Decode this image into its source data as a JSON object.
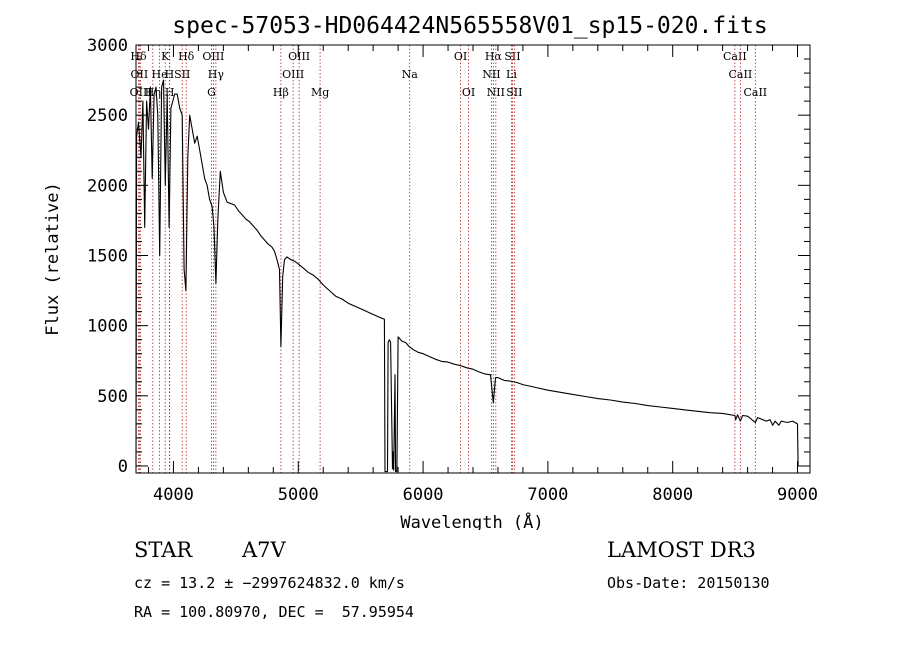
{
  "chart_data": {
    "type": "line",
    "title": "spec-57053-HD064424N565558V01_sp15-020.fits",
    "xlabel": "Wavelength (Å)",
    "ylabel": "Flux (relative)",
    "xlim": [
      3700,
      9100
    ],
    "ylim": [
      -50,
      3000
    ],
    "xticks": [
      4000,
      5000,
      6000,
      7000,
      8000,
      9000
    ],
    "yticks": [
      0,
      500,
      1000,
      1500,
      2000,
      2500,
      3000
    ],
    "series": [
      {
        "name": "spectrum",
        "points": [
          [
            3700,
            0
          ],
          [
            3705,
            2350
          ],
          [
            3720,
            2450
          ],
          [
            3740,
            2200
          ],
          [
            3755,
            2600
          ],
          [
            3770,
            1700
          ],
          [
            3785,
            2600
          ],
          [
            3800,
            2400
          ],
          [
            3815,
            2700
          ],
          [
            3830,
            2050
          ],
          [
            3845,
            2650
          ],
          [
            3860,
            2700
          ],
          [
            3875,
            2500
          ],
          [
            3890,
            1500
          ],
          [
            3905,
            2700
          ],
          [
            3920,
            2750
          ],
          [
            3935,
            2000
          ],
          [
            3950,
            2650
          ],
          [
            3965,
            1700
          ],
          [
            3980,
            2550
          ],
          [
            3995,
            2600
          ],
          [
            4010,
            2650
          ],
          [
            4030,
            2650
          ],
          [
            4050,
            2550
          ],
          [
            4070,
            2500
          ],
          [
            4085,
            1400
          ],
          [
            4100,
            1250
          ],
          [
            4115,
            2200
          ],
          [
            4130,
            2500
          ],
          [
            4150,
            2400
          ],
          [
            4170,
            2300
          ],
          [
            4190,
            2350
          ],
          [
            4210,
            2250
          ],
          [
            4230,
            2150
          ],
          [
            4250,
            2050
          ],
          [
            4270,
            2000
          ],
          [
            4290,
            1900
          ],
          [
            4310,
            1850
          ],
          [
            4325,
            1700
          ],
          [
            4340,
            1300
          ],
          [
            4355,
            1750
          ],
          [
            4375,
            2100
          ],
          [
            4400,
            1950
          ],
          [
            4430,
            1880
          ],
          [
            4460,
            1870
          ],
          [
            4490,
            1860
          ],
          [
            4520,
            1820
          ],
          [
            4550,
            1790
          ],
          [
            4580,
            1760
          ],
          [
            4610,
            1740
          ],
          [
            4640,
            1710
          ],
          [
            4670,
            1680
          ],
          [
            4700,
            1640
          ],
          [
            4730,
            1610
          ],
          [
            4760,
            1580
          ],
          [
            4790,
            1560
          ],
          [
            4810,
            1530
          ],
          [
            4830,
            1470
          ],
          [
            4850,
            1400
          ],
          [
            4861,
            850
          ],
          [
            4875,
            1350
          ],
          [
            4890,
            1470
          ],
          [
            4910,
            1490
          ],
          [
            4940,
            1470
          ],
          [
            4970,
            1460
          ],
          [
            5000,
            1440
          ],
          [
            5040,
            1410
          ],
          [
            5080,
            1380
          ],
          [
            5120,
            1360
          ],
          [
            5160,
            1330
          ],
          [
            5200,
            1290
          ],
          [
            5250,
            1250
          ],
          [
            5300,
            1210
          ],
          [
            5350,
            1190
          ],
          [
            5400,
            1160
          ],
          [
            5450,
            1140
          ],
          [
            5500,
            1120
          ],
          [
            5550,
            1100
          ],
          [
            5600,
            1080
          ],
          [
            5650,
            1060
          ],
          [
            5690,
            1045
          ],
          [
            5695,
            -40
          ],
          [
            5715,
            -40
          ],
          [
            5720,
            880
          ],
          [
            5730,
            900
          ],
          [
            5740,
            880
          ],
          [
            5755,
            -20
          ],
          [
            5760,
            100
          ],
          [
            5765,
            -30
          ],
          [
            5775,
            650
          ],
          [
            5780,
            -40
          ],
          [
            5790,
            -40
          ],
          [
            5800,
            920
          ],
          [
            5830,
            890
          ],
          [
            5860,
            880
          ],
          [
            5890,
            850
          ],
          [
            5920,
            830
          ],
          [
            5960,
            810
          ],
          [
            6000,
            800
          ],
          [
            6050,
            780
          ],
          [
            6100,
            760
          ],
          [
            6150,
            745
          ],
          [
            6200,
            740
          ],
          [
            6250,
            725
          ],
          [
            6300,
            715
          ],
          [
            6350,
            700
          ],
          [
            6400,
            690
          ],
          [
            6450,
            670
          ],
          [
            6500,
            655
          ],
          [
            6540,
            650
          ],
          [
            6563,
            450
          ],
          [
            6580,
            630
          ],
          [
            6600,
            630
          ],
          [
            6650,
            610
          ],
          [
            6700,
            605
          ],
          [
            6750,
            595
          ],
          [
            6800,
            580
          ],
          [
            6900,
            560
          ],
          [
            7000,
            540
          ],
          [
            7100,
            525
          ],
          [
            7200,
            510
          ],
          [
            7300,
            495
          ],
          [
            7400,
            480
          ],
          [
            7500,
            470
          ],
          [
            7600,
            455
          ],
          [
            7700,
            445
          ],
          [
            7800,
            430
          ],
          [
            7900,
            420
          ],
          [
            8000,
            410
          ],
          [
            8100,
            400
          ],
          [
            8200,
            390
          ],
          [
            8300,
            380
          ],
          [
            8400,
            375
          ],
          [
            8498,
            360
          ],
          [
            8505,
            330
          ],
          [
            8520,
            365
          ],
          [
            8542,
            320
          ],
          [
            8560,
            360
          ],
          [
            8600,
            355
          ],
          [
            8662,
            310
          ],
          [
            8680,
            345
          ],
          [
            8750,
            320
          ],
          [
            8780,
            330
          ],
          [
            8800,
            290
          ],
          [
            8820,
            320
          ],
          [
            8850,
            290
          ],
          [
            8870,
            320
          ],
          [
            8920,
            310
          ],
          [
            8960,
            320
          ],
          [
            9000,
            300
          ],
          [
            9005,
            0
          ]
        ]
      }
    ],
    "lines": [
      {
        "label": "Hδ",
        "x": 3720,
        "row": 0
      },
      {
        "label": "OII",
        "x": 3727,
        "row": 1
      },
      {
        "label": "OIII",
        "x": 3737,
        "row": 2
      },
      {
        "label": "K",
        "x": 3934,
        "row": 0
      },
      {
        "label": "H",
        "x": 3968,
        "row": 1
      },
      {
        "label": "H",
        "x": 3970,
        "row": 2
      },
      {
        "label": "He",
        "x": 3889,
        "row": 1
      },
      {
        "label": "Hη",
        "x": 3835,
        "row": 2
      },
      {
        "label": "SII",
        "x": 4070,
        "row": 1
      },
      {
        "label": "Hδ",
        "x": 4102,
        "row": 0
      },
      {
        "label": "OIII",
        "x": 4320,
        "row": 0
      },
      {
        "label": "Hγ",
        "x": 4340,
        "row": 1
      },
      {
        "label": "G",
        "x": 4305,
        "row": 2
      },
      {
        "label": "Hβ",
        "x": 4861,
        "row": 2
      },
      {
        "label": "OIII",
        "x": 4959,
        "row": 1
      },
      {
        "label": "OIII",
        "x": 5007,
        "row": 0
      },
      {
        "label": "Mg",
        "x": 5175,
        "row": 2
      },
      {
        "label": "Na",
        "x": 5893,
        "row": 1
      },
      {
        "label": "OI",
        "x": 6300,
        "row": 0
      },
      {
        "label": "OI",
        "x": 6364,
        "row": 2
      },
      {
        "label": "Hα",
        "x": 6563,
        "row": 0
      },
      {
        "label": "NII",
        "x": 6548,
        "row": 1
      },
      {
        "label": "NII",
        "x": 6583,
        "row": 2
      },
      {
        "label": "SII",
        "x": 6716,
        "row": 0
      },
      {
        "label": "Li",
        "x": 6708,
        "row": 1
      },
      {
        "label": "SII",
        "x": 6731,
        "row": 2
      },
      {
        "label": "CaII",
        "x": 8498,
        "row": 0
      },
      {
        "label": "CaII",
        "x": 8542,
        "row": 1
      },
      {
        "label": "CaII",
        "x": 8662,
        "row": 2
      }
    ]
  },
  "info": {
    "object_class": "STAR",
    "subclass": "A7V",
    "survey": "LAMOST DR3",
    "cz": "cz = 13.2 ± −2997624832.0 km/s",
    "obs_date": "Obs-Date: 20150130",
    "radec": "RA = 100.80970, DEC =  57.95954"
  },
  "colors": {
    "axis": "#000000",
    "spectrum": "#000000",
    "marker_lines": "#b22222",
    "background": "#ffffff"
  }
}
